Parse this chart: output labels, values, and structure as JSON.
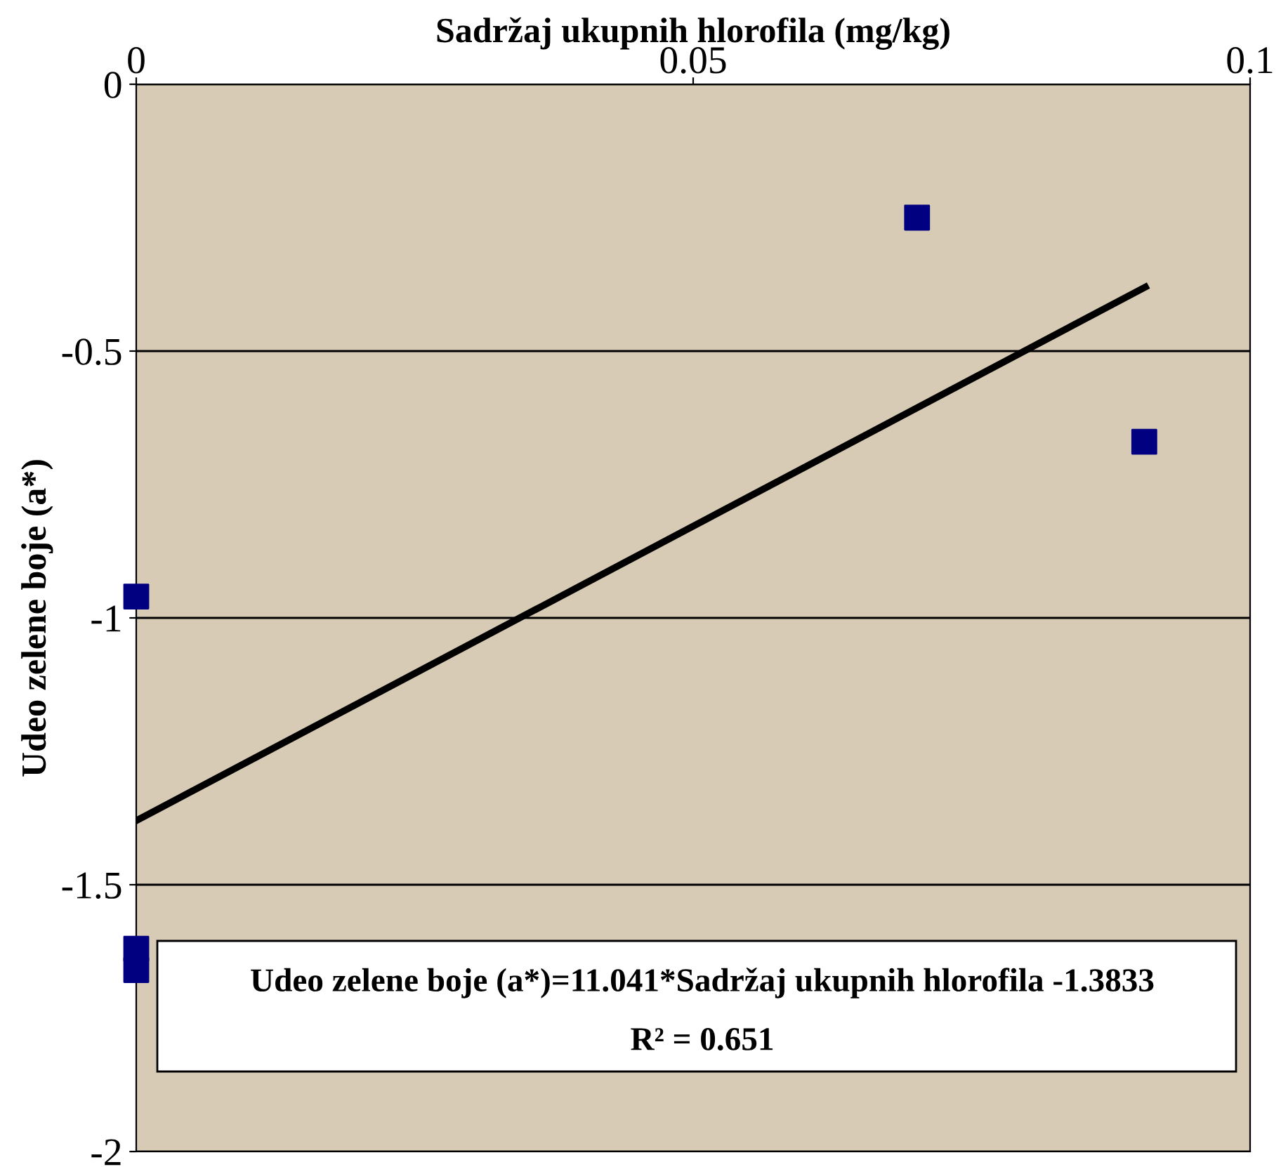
{
  "chart_data": {
    "type": "scatter",
    "xlabel": "Sadržaj ukupnih hlorofila (mg/kg)",
    "ylabel": "Udeo zelene boje (a*)",
    "xlim": [
      0,
      0.1
    ],
    "xticks": [
      0,
      0.05,
      0.1
    ],
    "ylim": [
      -2,
      0
    ],
    "yticks": [
      -2,
      -1.5,
      -1,
      -0.5,
      0
    ],
    "grid": "y",
    "series": [
      {
        "marker": "square",
        "color": "#000080",
        "x": [
          0,
          0,
          0,
          0.0701,
          0.0905
        ],
        "values": [
          -0.96,
          -1.62,
          -1.66,
          -0.25,
          -0.67
        ]
      },
      {
        "type": "line",
        "marker": "none",
        "color": "#000000",
        "x": [
          0,
          0.0906
        ],
        "values": [
          -1.38,
          -0.38
        ]
      }
    ],
    "annotations": [
      "Udeo zelene boje (a*)=11.041*Sadržaj ukupnih hlorofila -1.3833",
      "R² = 0.651"
    ]
  }
}
